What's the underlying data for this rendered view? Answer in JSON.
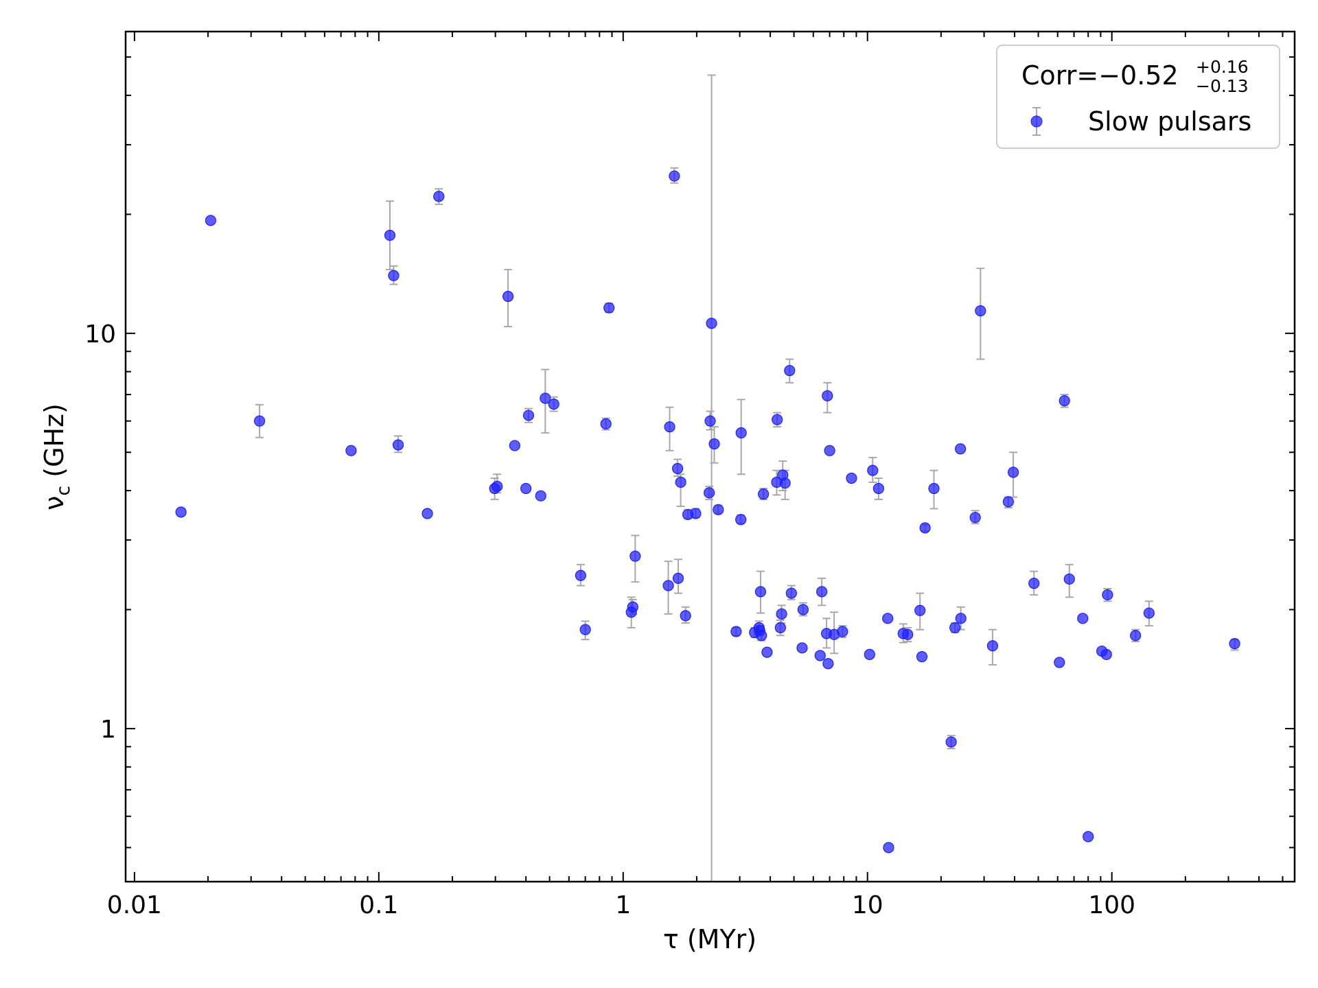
{
  "chart_data": {
    "type": "scatter",
    "xlabel": "τ (MYr)",
    "ylabel": "ν_c (GHz)",
    "xscale": "log",
    "yscale": "log",
    "xlim": [
      0.0092,
      560
    ],
    "ylim": [
      0.41,
      58
    ],
    "xticks": [
      0.01,
      0.1,
      1,
      10,
      100
    ],
    "xtick_labels": [
      "0.01",
      "0.1",
      "1",
      "10",
      "100"
    ],
    "yticks": [
      1,
      10
    ],
    "ytick_labels": [
      "1",
      "10"
    ],
    "grid": false,
    "legend_position": "top-right",
    "legend": {
      "corr_main": "Corr=−0.52",
      "corr_sup": "+0.16",
      "corr_sub": "−0.13",
      "series_label": "Slow pulsars"
    },
    "colors": {
      "marker": "#1f1fff",
      "errorbar": "#a8a8a8",
      "axis": "#000000"
    },
    "series": [
      {
        "name": "Slow pulsars",
        "points": [
          {
            "x": 0.0155,
            "y": 3.53
          },
          {
            "x": 0.0205,
            "y": 19.3
          },
          {
            "x": 0.0325,
            "y": 6.0,
            "ylo": 5.45,
            "yhi": 6.6
          },
          {
            "x": 0.077,
            "y": 5.05
          },
          {
            "x": 0.111,
            "y": 17.7,
            "ylo": 14.5,
            "yhi": 21.6
          },
          {
            "x": 0.115,
            "y": 14.0,
            "ylo": 13.3,
            "yhi": 14.8
          },
          {
            "x": 0.12,
            "y": 5.22,
            "ylo": 5.0,
            "yhi": 5.5
          },
          {
            "x": 0.158,
            "y": 3.5
          },
          {
            "x": 0.176,
            "y": 22.2,
            "ylo": 21.2,
            "yhi": 23.2
          },
          {
            "x": 0.298,
            "y": 4.05,
            "ylo": 3.8,
            "yhi": 4.3
          },
          {
            "x": 0.305,
            "y": 4.1,
            "ylo": 3.95,
            "yhi": 4.4
          },
          {
            "x": 0.338,
            "y": 12.4,
            "ylo": 10.4,
            "yhi": 14.5
          },
          {
            "x": 0.36,
            "y": 5.2
          },
          {
            "x": 0.4,
            "y": 4.05
          },
          {
            "x": 0.41,
            "y": 6.2,
            "ylo": 5.95,
            "yhi": 6.45
          },
          {
            "x": 0.46,
            "y": 3.88
          },
          {
            "x": 0.48,
            "y": 6.85,
            "ylo": 5.6,
            "yhi": 8.1
          },
          {
            "x": 0.52,
            "y": 6.62,
            "ylo": 6.35,
            "yhi": 6.9
          },
          {
            "x": 0.67,
            "y": 2.44,
            "ylo": 2.3,
            "yhi": 2.6
          },
          {
            "x": 0.7,
            "y": 1.78,
            "ylo": 1.68,
            "yhi": 1.87
          },
          {
            "x": 0.85,
            "y": 5.9,
            "ylo": 5.7,
            "yhi": 6.1
          },
          {
            "x": 0.875,
            "y": 11.6,
            "ylo": 11.3,
            "yhi": 11.9
          },
          {
            "x": 1.08,
            "y": 1.97,
            "ylo": 1.8,
            "yhi": 2.15
          },
          {
            "x": 1.095,
            "y": 2.03,
            "ylo": 1.95,
            "yhi": 2.12
          },
          {
            "x": 1.12,
            "y": 2.73,
            "ylo": 2.35,
            "yhi": 3.08
          },
          {
            "x": 1.53,
            "y": 2.3,
            "ylo": 1.95,
            "yhi": 2.65
          },
          {
            "x": 1.55,
            "y": 5.8,
            "ylo": 5.05,
            "yhi": 6.5
          },
          {
            "x": 1.62,
            "y": 25.0,
            "ylo": 24.0,
            "yhi": 26.2
          },
          {
            "x": 1.67,
            "y": 4.55,
            "ylo": 4.35,
            "yhi": 4.8
          },
          {
            "x": 1.68,
            "y": 2.4,
            "ylo": 2.2,
            "yhi": 2.68
          },
          {
            "x": 1.72,
            "y": 4.2,
            "ylo": 3.65,
            "yhi": 4.4
          },
          {
            "x": 1.8,
            "y": 1.93,
            "ylo": 1.85,
            "yhi": 2.03
          },
          {
            "x": 1.84,
            "y": 3.48,
            "ylo": 3.4,
            "yhi": 3.58
          },
          {
            "x": 1.98,
            "y": 3.5,
            "ylo": 3.42,
            "yhi": 3.6
          },
          {
            "x": 2.25,
            "y": 3.95,
            "ylo": 3.8,
            "yhi": 4.1
          },
          {
            "x": 2.27,
            "y": 6.0,
            "ylo": 5.7,
            "yhi": 6.35
          },
          {
            "x": 2.3,
            "y": 10.6,
            "ylo": 0.41,
            "yhi": 45.0
          },
          {
            "x": 2.36,
            "y": 5.25,
            "ylo": 4.7,
            "yhi": 5.8
          },
          {
            "x": 2.45,
            "y": 3.58,
            "ylo": 3.5,
            "yhi": 3.67
          },
          {
            "x": 2.9,
            "y": 1.76,
            "ylo": 1.72,
            "yhi": 1.8
          },
          {
            "x": 3.03,
            "y": 3.38,
            "ylo": 3.3,
            "yhi": 3.47
          },
          {
            "x": 3.04,
            "y": 5.6,
            "ylo": 4.4,
            "yhi": 6.8
          },
          {
            "x": 3.45,
            "y": 1.75,
            "ylo": 1.7,
            "yhi": 1.8
          },
          {
            "x": 3.6,
            "y": 1.8,
            "ylo": 1.73,
            "yhi": 1.87
          },
          {
            "x": 3.62,
            "y": 1.77,
            "ylo": 1.72,
            "yhi": 1.82
          },
          {
            "x": 3.65,
            "y": 2.22,
            "ylo": 1.96,
            "yhi": 2.5
          },
          {
            "x": 3.68,
            "y": 1.72,
            "ylo": 1.67,
            "yhi": 1.77
          },
          {
            "x": 3.75,
            "y": 3.92,
            "ylo": 3.8,
            "yhi": 4.05
          },
          {
            "x": 3.88,
            "y": 1.56
          },
          {
            "x": 4.25,
            "y": 4.2,
            "ylo": 3.9,
            "yhi": 4.5
          },
          {
            "x": 4.27,
            "y": 6.05,
            "ylo": 5.8,
            "yhi": 6.3
          },
          {
            "x": 4.4,
            "y": 1.8,
            "ylo": 1.72,
            "yhi": 1.88
          },
          {
            "x": 4.45,
            "y": 1.95,
            "ylo": 1.85,
            "yhi": 2.05
          },
          {
            "x": 4.5,
            "y": 4.38,
            "ylo": 4.0,
            "yhi": 4.75
          },
          {
            "x": 4.6,
            "y": 4.18,
            "ylo": 3.8,
            "yhi": 4.5
          },
          {
            "x": 4.8,
            "y": 8.05,
            "ylo": 7.5,
            "yhi": 8.6
          },
          {
            "x": 4.88,
            "y": 2.2,
            "ylo": 2.12,
            "yhi": 2.3
          },
          {
            "x": 5.4,
            "y": 1.6
          },
          {
            "x": 5.45,
            "y": 2.0,
            "ylo": 1.93,
            "yhi": 2.08
          },
          {
            "x": 6.4,
            "y": 1.53
          },
          {
            "x": 6.5,
            "y": 2.22,
            "ylo": 2.05,
            "yhi": 2.4
          },
          {
            "x": 6.8,
            "y": 1.74,
            "ylo": 1.6,
            "yhi": 1.9
          },
          {
            "x": 6.85,
            "y": 6.95,
            "ylo": 6.3,
            "yhi": 7.5
          },
          {
            "x": 6.9,
            "y": 1.46
          },
          {
            "x": 7.0,
            "y": 5.05
          },
          {
            "x": 7.3,
            "y": 1.73,
            "ylo": 1.55,
            "yhi": 1.97
          },
          {
            "x": 7.9,
            "y": 1.76,
            "ylo": 1.7,
            "yhi": 1.82
          },
          {
            "x": 8.6,
            "y": 4.3
          },
          {
            "x": 10.2,
            "y": 1.54
          },
          {
            "x": 10.5,
            "y": 4.5,
            "ylo": 4.2,
            "yhi": 4.85
          },
          {
            "x": 11.1,
            "y": 4.05,
            "ylo": 3.8,
            "yhi": 4.3
          },
          {
            "x": 12.1,
            "y": 1.9
          },
          {
            "x": 12.2,
            "y": 0.5
          },
          {
            "x": 14.0,
            "y": 1.74,
            "ylo": 1.65,
            "yhi": 1.84
          },
          {
            "x": 14.6,
            "y": 1.73,
            "ylo": 1.66,
            "yhi": 1.8
          },
          {
            "x": 16.4,
            "y": 1.99,
            "ylo": 1.78,
            "yhi": 2.2
          },
          {
            "x": 16.7,
            "y": 1.52
          },
          {
            "x": 17.2,
            "y": 3.22,
            "ylo": 3.16,
            "yhi": 3.28
          },
          {
            "x": 18.7,
            "y": 4.05,
            "ylo": 3.6,
            "yhi": 4.5
          },
          {
            "x": 22.0,
            "y": 0.925,
            "ylo": 0.89,
            "yhi": 0.96
          },
          {
            "x": 22.8,
            "y": 1.8,
            "ylo": 1.75,
            "yhi": 1.85
          },
          {
            "x": 24.0,
            "y": 5.1
          },
          {
            "x": 24.1,
            "y": 1.9,
            "ylo": 1.78,
            "yhi": 2.03
          },
          {
            "x": 27.6,
            "y": 3.42,
            "ylo": 3.3,
            "yhi": 3.56
          },
          {
            "x": 29.0,
            "y": 11.4,
            "ylo": 8.6,
            "yhi": 14.6
          },
          {
            "x": 32.5,
            "y": 1.62,
            "ylo": 1.45,
            "yhi": 1.78
          },
          {
            "x": 37.7,
            "y": 3.75,
            "ylo": 3.62,
            "yhi": 3.85
          },
          {
            "x": 39.5,
            "y": 4.45,
            "ylo": 3.85,
            "yhi": 5.0
          },
          {
            "x": 48.0,
            "y": 2.33,
            "ylo": 2.18,
            "yhi": 2.5
          },
          {
            "x": 61.0,
            "y": 1.47
          },
          {
            "x": 64.0,
            "y": 6.75,
            "ylo": 6.5,
            "yhi": 7.0
          },
          {
            "x": 67.0,
            "y": 2.39,
            "ylo": 2.15,
            "yhi": 2.6
          },
          {
            "x": 76.0,
            "y": 1.9
          },
          {
            "x": 80.0,
            "y": 0.533
          },
          {
            "x": 91.0,
            "y": 1.57
          },
          {
            "x": 95.0,
            "y": 1.54
          },
          {
            "x": 96.0,
            "y": 2.18,
            "ylo": 2.1,
            "yhi": 2.26
          },
          {
            "x": 125.0,
            "y": 1.72,
            "ylo": 1.66,
            "yhi": 1.78
          },
          {
            "x": 142.0,
            "y": 1.96,
            "ylo": 1.82,
            "yhi": 2.1
          },
          {
            "x": 318.0,
            "y": 1.64,
            "ylo": 1.58,
            "yhi": 1.68
          }
        ]
      }
    ]
  }
}
